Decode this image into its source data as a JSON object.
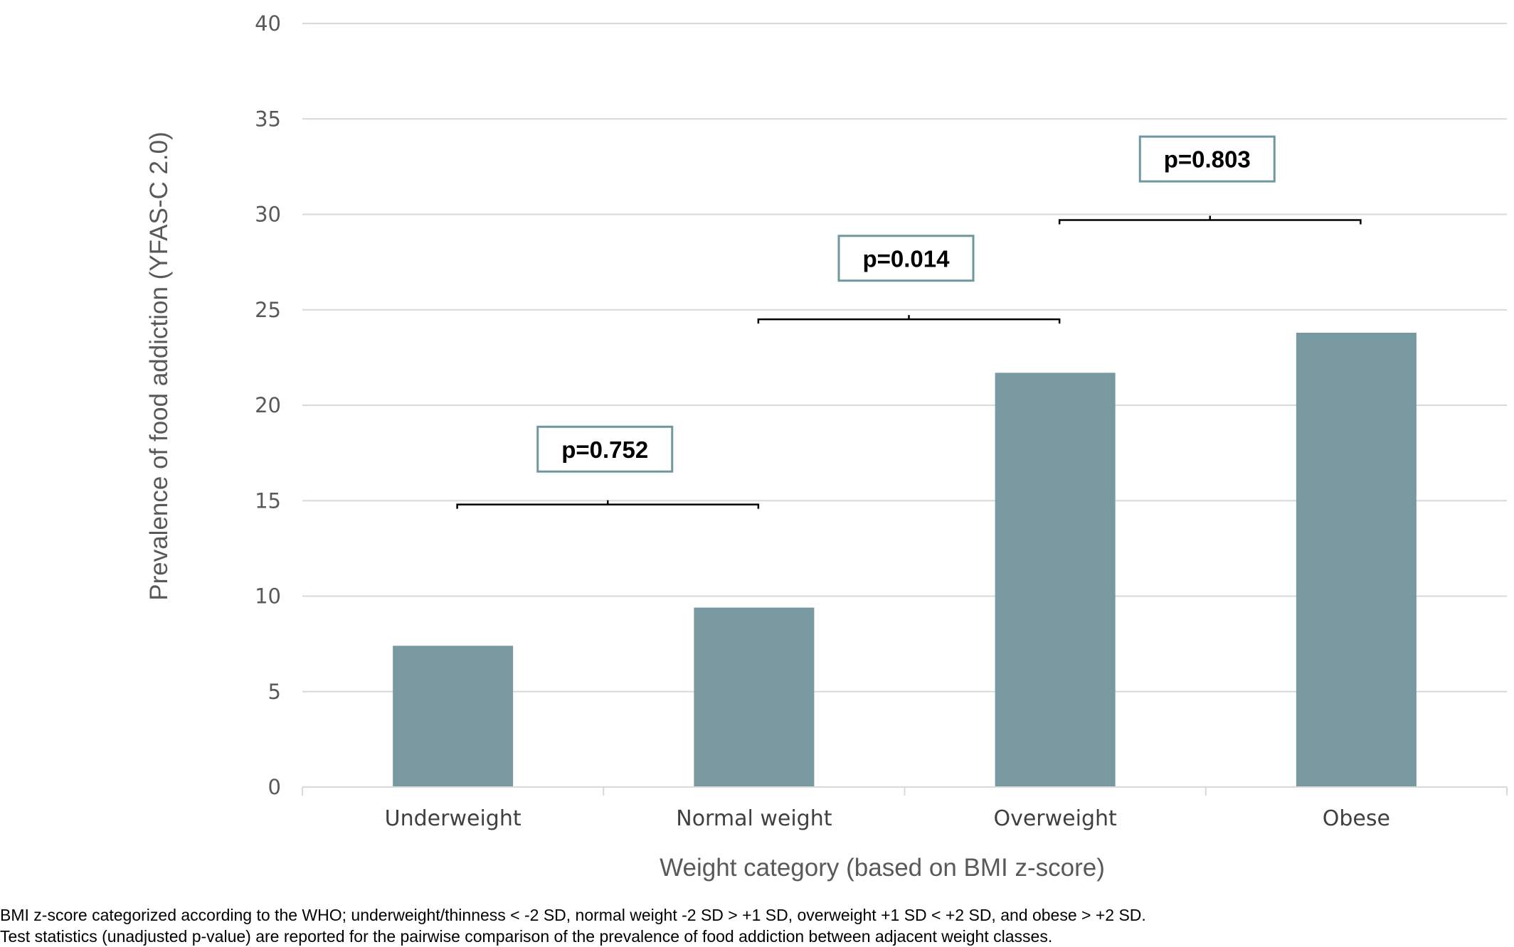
{
  "chart_data": {
    "type": "bar",
    "categories": [
      "Underweight",
      "Normal weight",
      "Overweight",
      "Obese"
    ],
    "values": [
      7.4,
      9.4,
      21.7,
      23.8
    ],
    "xlabel": "Weight category (based on BMI z-score)",
    "ylabel": "Prevalence of food addiction (YFAS-C 2.0)",
    "ylim": [
      0,
      40
    ],
    "yticks": [
      "0",
      "5",
      "10",
      "15",
      "20",
      "25",
      "30",
      "35",
      "40"
    ],
    "grid": true,
    "legend": "none",
    "bar_color": "#7899a0",
    "comparisons": [
      {
        "from": 0,
        "to": 1,
        "label": "p=0.752",
        "bracket_y": 14.8,
        "box_y": 17.7
      },
      {
        "from": 1,
        "to": 2,
        "label": "p=0.014",
        "bracket_y": 24.5,
        "box_y": 27.7
      },
      {
        "from": 2,
        "to": 3,
        "label": "p=0.803",
        "bracket_y": 29.7,
        "box_y": 32.9
      }
    ]
  },
  "footnotes": [
    "BMI z-score categorized according to the WHO; underweight/thinness < -2 SD, normal weight -2 SD > +1 SD, overweight +1 SD < +2 SD, and obese > +2 SD.",
    "Test statistics (unadjusted p-value) are reported for the pairwise comparison of the prevalence of food addiction between adjacent weight classes."
  ]
}
